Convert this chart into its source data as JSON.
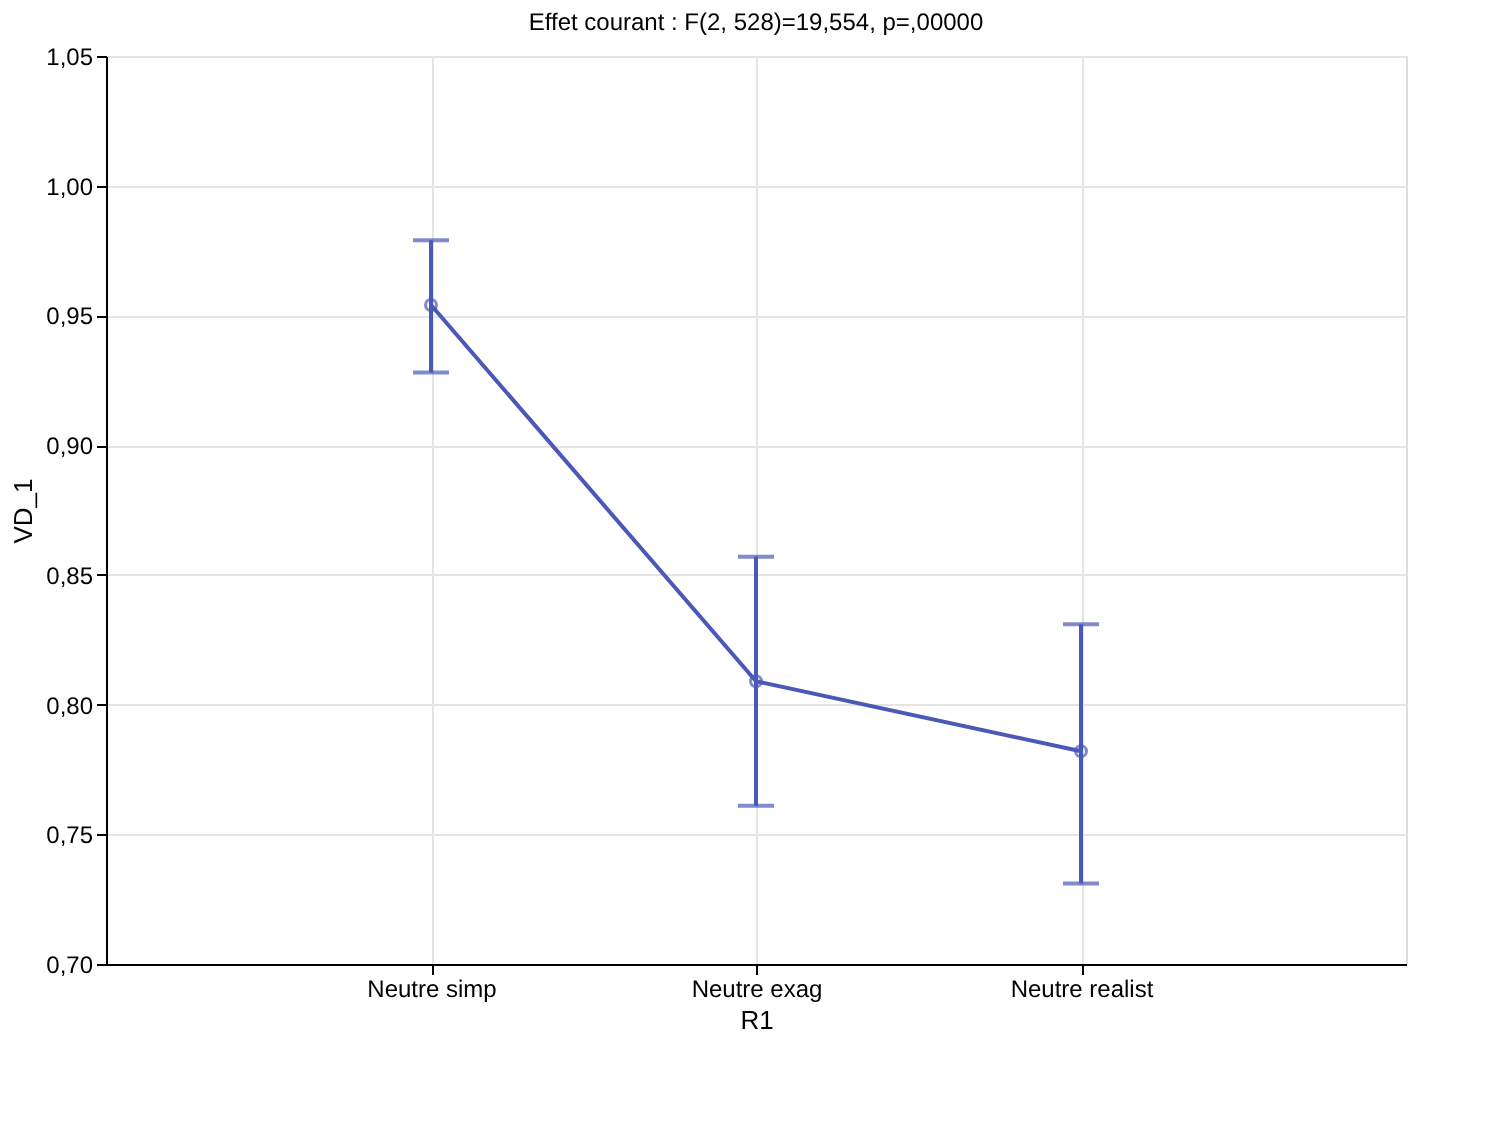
{
  "chart_data": {
    "type": "line",
    "title": "Effet courant : F(2, 528)=19,554, p=,00000",
    "xlabel": "R1",
    "ylabel": "VD_1",
    "categories": [
      "Neutre simp",
      "Neutre exag",
      "Neutre realist"
    ],
    "series": [
      {
        "color": "#4a58b8",
        "values": [
          0.954,
          0.809,
          0.782
        ],
        "errors": [
          [
            0.928,
            0.979
          ],
          [
            0.761,
            0.857
          ],
          [
            0.731,
            0.831
          ]
        ]
      }
    ],
    "ylim": [
      0.7,
      1.05
    ],
    "yticks": [
      {
        "value": 0.7,
        "label": "0,70"
      },
      {
        "value": 0.75,
        "label": "0,75"
      },
      {
        "value": 0.8,
        "label": "0,80"
      },
      {
        "value": 0.85,
        "label": "0,85"
      },
      {
        "value": 0.9,
        "label": "0,90"
      },
      {
        "value": 0.95,
        "label": "0,95"
      },
      {
        "value": 1.0,
        "label": "1,00"
      },
      {
        "value": 1.05,
        "label": "1,05"
      }
    ],
    "grid": true,
    "marker": "circle",
    "line_style": "solid"
  }
}
